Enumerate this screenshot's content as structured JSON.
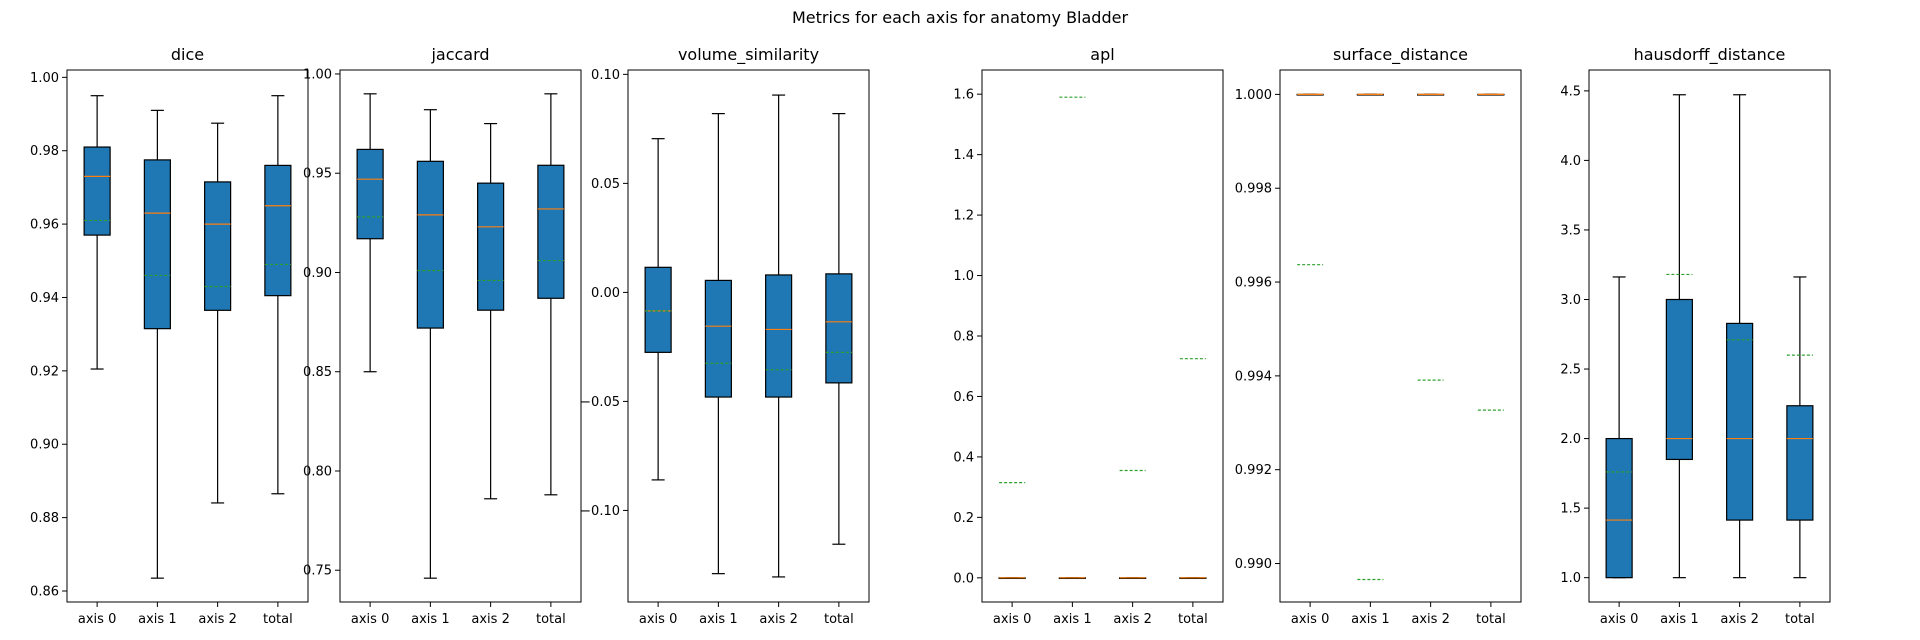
{
  "suptitle": "Metrics for each axis for anatomy Bladder",
  "colors": {
    "box_fill": "#1f77b4",
    "median": "#ff7f0e",
    "mean": "#2ca02c",
    "edge": "#000000"
  },
  "chart_data": [
    {
      "type": "box",
      "title": "dice",
      "categories": [
        "axis 0",
        "axis 1",
        "axis 2",
        "total"
      ],
      "ylim": [
        0.857,
        1.002
      ],
      "yticks": [
        0.86,
        0.88,
        0.9,
        0.92,
        0.94,
        0.96,
        0.98,
        1.0
      ],
      "ytick_labels": [
        "0.86",
        "0.88",
        "0.90",
        "0.92",
        "0.94",
        "0.96",
        "0.98",
        "1.00"
      ],
      "boxes": [
        {
          "whislo": 0.9205,
          "q1": 0.957,
          "med": 0.973,
          "q3": 0.981,
          "whishi": 0.995,
          "mean": 0.961
        },
        {
          "whislo": 0.8635,
          "q1": 0.9315,
          "med": 0.963,
          "q3": 0.9775,
          "whishi": 0.991,
          "mean": 0.946
        },
        {
          "whislo": 0.884,
          "q1": 0.9365,
          "med": 0.96,
          "q3": 0.9715,
          "whishi": 0.9875,
          "mean": 0.943
        },
        {
          "whislo": 0.8865,
          "q1": 0.9405,
          "med": 0.965,
          "q3": 0.976,
          "whishi": 0.995,
          "mean": 0.949
        }
      ]
    },
    {
      "type": "box",
      "title": "jaccard",
      "categories": [
        "axis 0",
        "axis 1",
        "axis 2",
        "total"
      ],
      "ylim": [
        0.734,
        1.002
      ],
      "yticks": [
        0.75,
        0.8,
        0.85,
        0.9,
        0.95,
        1.0
      ],
      "ytick_labels": [
        "0.75",
        "0.80",
        "0.85",
        "0.90",
        "0.95",
        "1.00"
      ],
      "boxes": [
        {
          "whislo": 0.85,
          "q1": 0.917,
          "med": 0.947,
          "q3": 0.962,
          "whishi": 0.99,
          "mean": 0.928
        },
        {
          "whislo": 0.746,
          "q1": 0.872,
          "med": 0.929,
          "q3": 0.956,
          "whishi": 0.982,
          "mean": 0.901
        },
        {
          "whislo": 0.786,
          "q1": 0.881,
          "med": 0.923,
          "q3": 0.945,
          "whishi": 0.975,
          "mean": 0.896
        },
        {
          "whislo": 0.788,
          "q1": 0.887,
          "med": 0.932,
          "q3": 0.954,
          "whishi": 0.99,
          "mean": 0.906
        }
      ]
    },
    {
      "type": "box",
      "title": "volume_similarity",
      "categories": [
        "axis 0",
        "axis 1",
        "axis 2",
        "total"
      ],
      "ylim": [
        -0.142,
        0.102
      ],
      "yticks": [
        -0.1,
        -0.05,
        0.0,
        0.05,
        0.1
      ],
      "ytick_labels": [
        "−0.10",
        "−0.05",
        "0.00",
        "0.05",
        "0.10"
      ],
      "boxes": [
        {
          "whislo": -0.086,
          "q1": -0.0275,
          "med": -0.0085,
          "q3": 0.0115,
          "whishi": 0.0705,
          "mean": -0.0085
        },
        {
          "whislo": -0.129,
          "q1": -0.048,
          "med": -0.0155,
          "q3": 0.0055,
          "whishi": 0.082,
          "mean": -0.0325
        },
        {
          "whislo": -0.1305,
          "q1": -0.048,
          "med": -0.017,
          "q3": 0.008,
          "whishi": 0.0905,
          "mean": -0.0355
        },
        {
          "whislo": -0.1155,
          "q1": -0.0415,
          "med": -0.0135,
          "q3": 0.0085,
          "whishi": 0.082,
          "mean": -0.0275
        }
      ]
    },
    {
      "type": "box",
      "title": "apl",
      "categories": [
        "axis 0",
        "axis 1",
        "axis 2",
        "total"
      ],
      "ylim": [
        -0.08,
        1.68
      ],
      "yticks": [
        0.0,
        0.2,
        0.4,
        0.6,
        0.8,
        1.0,
        1.2,
        1.4,
        1.6
      ],
      "ytick_labels": [
        "0.0",
        "0.2",
        "0.4",
        "0.6",
        "0.8",
        "1.0",
        "1.2",
        "1.4",
        "1.6"
      ],
      "boxes": [
        {
          "whislo": 0.0,
          "q1": 0.0,
          "med": 0.0,
          "q3": 0.0,
          "whishi": 0.0,
          "mean": 0.315
        },
        {
          "whislo": 0.0,
          "q1": 0.0,
          "med": 0.0,
          "q3": 0.0,
          "whishi": 0.0,
          "mean": 1.59
        },
        {
          "whislo": 0.0,
          "q1": 0.0,
          "med": 0.0,
          "q3": 0.0,
          "whishi": 0.0,
          "mean": 0.355
        },
        {
          "whislo": 0.0,
          "q1": 0.0,
          "med": 0.0,
          "q3": 0.0,
          "whishi": 0.0,
          "mean": 0.725
        }
      ]
    },
    {
      "type": "box",
      "title": "surface_distance",
      "categories": [
        "axis 0",
        "axis 1",
        "axis 2",
        "total"
      ],
      "ylim": [
        0.98918,
        1.00052
      ],
      "yticks": [
        0.99,
        0.992,
        0.994,
        0.996,
        0.998,
        1.0
      ],
      "ytick_labels": [
        "0.990",
        "0.992",
        "0.994",
        "0.996",
        "0.998",
        "1.000"
      ],
      "boxes": [
        {
          "whislo": 1.0,
          "q1": 1.0,
          "med": 1.0,
          "q3": 1.0,
          "whishi": 1.0,
          "mean": 0.99637
        },
        {
          "whislo": 1.0,
          "q1": 1.0,
          "med": 1.0,
          "q3": 1.0,
          "whishi": 1.0,
          "mean": 0.98966
        },
        {
          "whislo": 1.0,
          "q1": 1.0,
          "med": 1.0,
          "q3": 1.0,
          "whishi": 1.0,
          "mean": 0.99391
        },
        {
          "whislo": 1.0,
          "q1": 1.0,
          "med": 1.0,
          "q3": 1.0,
          "whishi": 1.0,
          "mean": 0.99327
        }
      ]
    },
    {
      "type": "box",
      "title": "hausdorff_distance",
      "categories": [
        "axis 0",
        "axis 1",
        "axis 2",
        "total"
      ],
      "ylim": [
        0.825,
        4.65
      ],
      "yticks": [
        1.0,
        1.5,
        2.0,
        2.5,
        3.0,
        3.5,
        4.0,
        4.5
      ],
      "ytick_labels": [
        "1.0",
        "1.5",
        "2.0",
        "2.5",
        "3.0",
        "3.5",
        "4.0",
        "4.5"
      ],
      "boxes": [
        {
          "whislo": 1.0,
          "q1": 1.0,
          "med": 1.414,
          "q3": 2.0,
          "whishi": 3.162,
          "mean": 1.76
        },
        {
          "whislo": 1.0,
          "q1": 1.85,
          "med": 2.0,
          "q3": 3.0,
          "whishi": 4.472,
          "mean": 3.18
        },
        {
          "whislo": 1.0,
          "q1": 1.414,
          "med": 2.0,
          "q3": 2.828,
          "whishi": 4.472,
          "mean": 2.71
        },
        {
          "whislo": 1.0,
          "q1": 1.414,
          "med": 2.0,
          "q3": 2.236,
          "whishi": 3.162,
          "mean": 2.6
        }
      ]
    }
  ]
}
